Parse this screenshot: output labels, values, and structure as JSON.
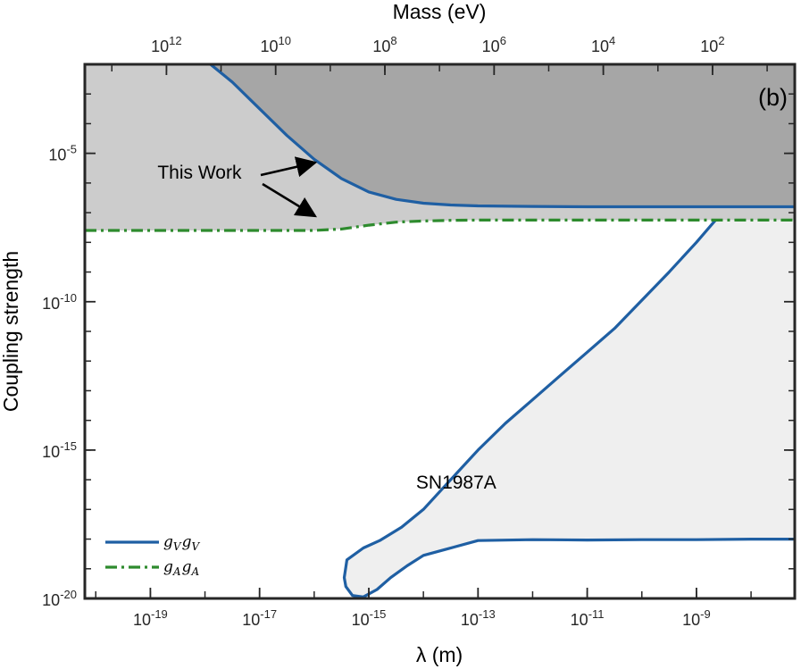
{
  "chart_data": {
    "type": "area",
    "panel_label": "(b)",
    "xlabel": "λ (m)",
    "ylabel": "Coupling strength",
    "x2label": "Mass (eV)",
    "x_log10_range": [
      -20.2,
      -7.2
    ],
    "y_log10_range": [
      -20,
      -2
    ],
    "x_ticks": [
      {
        "exp": -19,
        "base": "10",
        "sup": "-19"
      },
      {
        "exp": -17,
        "base": "10",
        "sup": "-17"
      },
      {
        "exp": -15,
        "base": "10",
        "sup": "-15"
      },
      {
        "exp": -13,
        "base": "10",
        "sup": "-13"
      },
      {
        "exp": -11,
        "base": "10",
        "sup": "-11"
      },
      {
        "exp": -9,
        "base": "10",
        "sup": "-9"
      }
    ],
    "y_ticks": [
      {
        "exp": -5,
        "base": "10",
        "sup": "-5"
      },
      {
        "exp": -10,
        "base": "10",
        "sup": "-10"
      },
      {
        "exp": -15,
        "base": "10",
        "sup": "-15"
      },
      {
        "exp": -20,
        "base": "10",
        "sup": "-20"
      }
    ],
    "x2_ticks": [
      {
        "exp": 12,
        "base": "10",
        "sup": "12"
      },
      {
        "exp": 10,
        "base": "10",
        "sup": "10"
      },
      {
        "exp": 8,
        "base": "10",
        "sup": "8"
      },
      {
        "exp": 6,
        "base": "10",
        "sup": "6"
      },
      {
        "exp": 4,
        "base": "10",
        "sup": "4"
      },
      {
        "exp": 2,
        "base": "10",
        "sup": "2"
      }
    ],
    "hbar_c_eV_m": 1.97e-07,
    "series": [
      {
        "name": "gVgV",
        "legend_main": "g",
        "legend_sub1": "V",
        "legend_sub2": "V",
        "style": "solid",
        "color": "#1f5fa3",
        "x_log10": [
          -17.9,
          -17.5,
          -17.0,
          -16.5,
          -16.0,
          -15.5,
          -15.0,
          -14.5,
          -14.0,
          -13.5,
          -13.0,
          -12.0,
          -11.0,
          -10.0,
          -9.0,
          -8.0,
          -7.2
        ],
        "y_log10": [
          -2.0,
          -2.6,
          -3.5,
          -4.4,
          -5.2,
          -5.85,
          -6.3,
          -6.55,
          -6.68,
          -6.74,
          -6.77,
          -6.79,
          -6.8,
          -6.8,
          -6.8,
          -6.8,
          -6.8
        ]
      },
      {
        "name": "gAgA",
        "legend_main": "g",
        "legend_sub1": "A",
        "legend_sub2": "A",
        "style": "dash-dot",
        "color": "#2e8b2e",
        "x_log10": [
          -20.2,
          -19.0,
          -18.0,
          -17.0,
          -16.0,
          -15.5,
          -15.0,
          -14.5,
          -14.0,
          -13.5,
          -13.0,
          -12.0,
          -10.0,
          -8.0,
          -7.2
        ],
        "y_log10": [
          -7.6,
          -7.6,
          -7.6,
          -7.6,
          -7.6,
          -7.55,
          -7.42,
          -7.32,
          -7.28,
          -7.26,
          -7.25,
          -7.25,
          -7.25,
          -7.25,
          -7.25
        ]
      },
      {
        "name": "SN1987A",
        "style": "closed-region",
        "color": "#1f5fa3",
        "x_log10": [
          -8.65,
          -9.0,
          -9.5,
          -10.0,
          -10.5,
          -11.0,
          -11.5,
          -12.0,
          -12.5,
          -13.0,
          -13.5,
          -14.0,
          -14.4,
          -14.8,
          -15.1,
          -15.4,
          -15.45,
          -15.42,
          -15.3,
          -15.1,
          -14.85,
          -14.6,
          -14.3,
          -14.0,
          -13.6,
          -13.0,
          -12.0,
          -11.0,
          -10.0,
          -9.0,
          -8.0,
          -7.2,
          -7.2,
          -8.0,
          -8.65
        ],
        "y_log10": [
          -7.25,
          -8.0,
          -9.0,
          -9.95,
          -10.9,
          -11.7,
          -12.5,
          -13.3,
          -14.1,
          -15.0,
          -16.0,
          -17.0,
          -17.6,
          -18.05,
          -18.3,
          -18.7,
          -19.3,
          -19.6,
          -19.9,
          -19.95,
          -19.7,
          -19.3,
          -18.9,
          -18.55,
          -18.35,
          -18.05,
          -18.02,
          -18.03,
          -18.02,
          -18.02,
          -18.0,
          -18.0,
          -7.25,
          -7.25,
          -7.25
        ]
      }
    ],
    "annotations": [
      {
        "text": "This Work",
        "x_log10": -18.1,
        "y_log10": -5.85
      },
      {
        "text": "SN1987A",
        "x_log10": -13.4,
        "y_log10": -16.3
      }
    ],
    "colors": {
      "upper_light": "#cccccc",
      "upper_dark": "#a6a6a6",
      "sn_fill": "#efefef",
      "axes": "#262626"
    }
  }
}
